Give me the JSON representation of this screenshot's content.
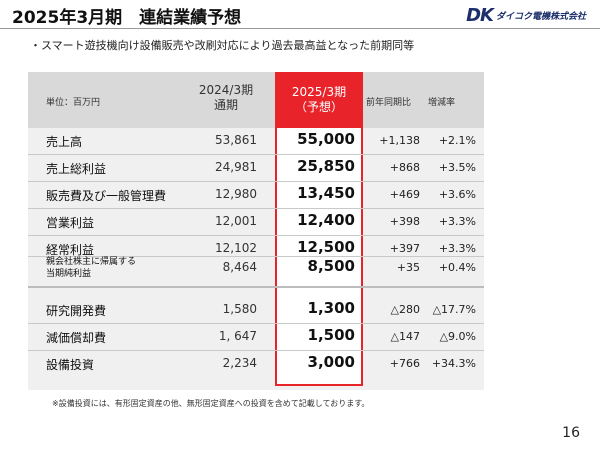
{
  "header": {
    "title": "2025年3月期　連結業績予想",
    "logo_mark": "DK",
    "logo_name": "ダイコク電機株式会社"
  },
  "subtitle": "・スマート遊技機向け設備販売や改刷対応により過去最高益となった前期同等",
  "table": {
    "unit_label": "単位：百万円",
    "col_2024_line1": "2024/3期",
    "col_2024_line2": "通期",
    "col_2025_line1": "2025/3期",
    "col_2025_line2": "（予想）",
    "col_yoy": "前年同期比",
    "col_rate": "増減率",
    "rows": [
      {
        "label": "売上高",
        "v2024": "53,861",
        "v2025": "55,000",
        "yoy": "+1,138",
        "rate": "+2.1%"
      },
      {
        "label": "売上総利益",
        "v2024": "24,981",
        "v2025": "25,850",
        "yoy": "+868",
        "rate": "+3.5%"
      },
      {
        "label": "販売費及び一般管理費",
        "v2024": "12,980",
        "v2025": "13,450",
        "yoy": "+469",
        "rate": "+3.6%"
      },
      {
        "label": "営業利益",
        "v2024": "12,001",
        "v2025": "12,400",
        "yoy": "+398",
        "rate": "+3.3%"
      },
      {
        "label": "経常利益",
        "v2024": "12,102",
        "v2025": "12,500",
        "yoy": "+397",
        "rate": "+3.3%"
      },
      {
        "label_line1": "親会社株主に帰属する",
        "label_line2": "当期純利益",
        "v2024": "8,464",
        "v2025": "8,500",
        "yoy": "+35",
        "rate": "+0.4%"
      },
      {
        "label": "研究開発費",
        "v2024": "1,580",
        "v2025": "1,300",
        "yoy": "△280",
        "rate": "△17.7%"
      },
      {
        "label": "減価償却費",
        "v2024": "1, 647",
        "v2025": "1,500",
        "yoy": "△147",
        "rate": "△9.0%"
      },
      {
        "label": "設備投資",
        "v2024": "2,234",
        "v2025": "3,000",
        "yoy": "+766",
        "rate": "+34.3%"
      }
    ]
  },
  "footnote": "※設備投資には、有形固定資産の他、無形固定資産への投資を含めて記載しております。",
  "page_number": "16"
}
